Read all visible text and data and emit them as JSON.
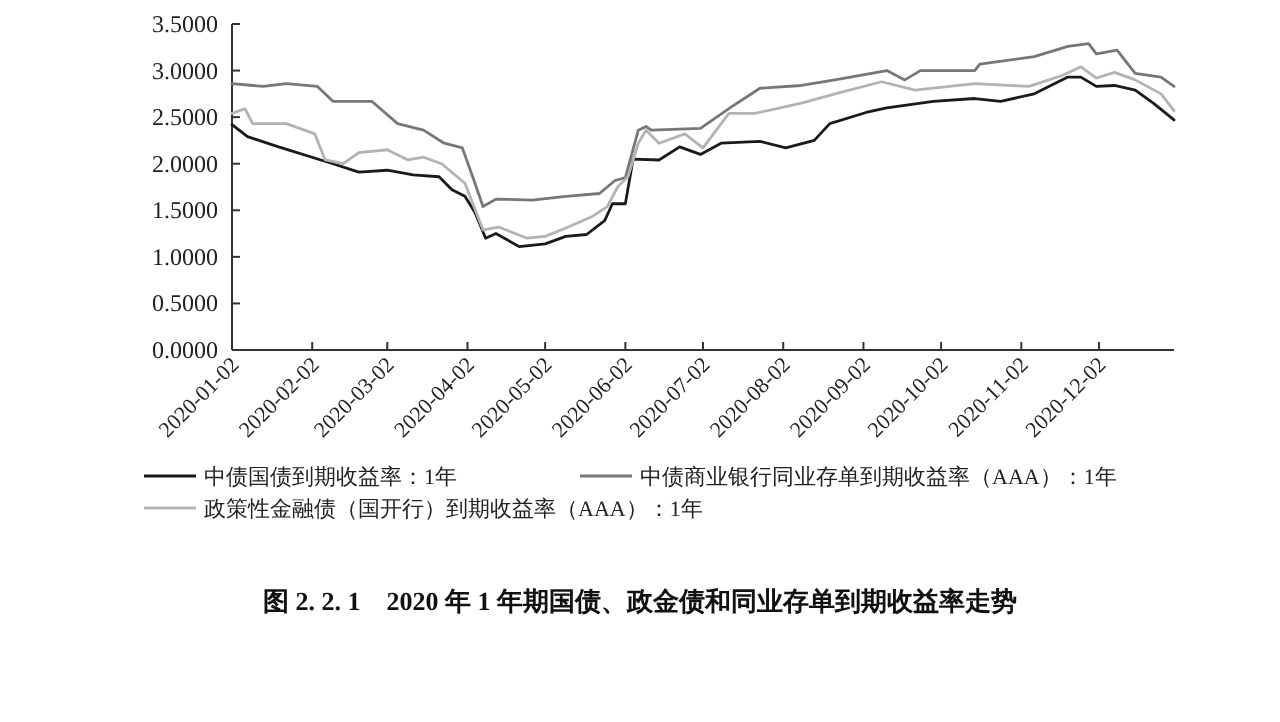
{
  "chart_data": {
    "type": "line",
    "title": "图 2. 2. 1　2020 年 1 年期国债、政金债和同业存单到期收益率走势",
    "xlim": [
      "2020-01-02",
      "2020-12-31"
    ],
    "xticks": [
      "2020-01-02",
      "2020-02-02",
      "2020-03-02",
      "2020-04-02",
      "2020-05-02",
      "2020-06-02",
      "2020-07-02",
      "2020-08-02",
      "2020-09-02",
      "2020-10-02",
      "2020-11-02",
      "2020-12-02"
    ],
    "ylim": [
      0,
      3.5
    ],
    "yticks": [
      {
        "value": 0,
        "label": "0.0000"
      },
      {
        "value": 0.5,
        "label": "0.5000"
      },
      {
        "value": 1,
        "label": "1.0000"
      },
      {
        "value": 1.5,
        "label": "1.5000"
      },
      {
        "value": 2,
        "label": "2.0000"
      },
      {
        "value": 2.5,
        "label": "2.5000"
      },
      {
        "value": 3,
        "label": "3.0000"
      },
      {
        "value": 3.5,
        "label": "3.5000"
      }
    ],
    "grid": false,
    "legend": "bottom",
    "marker": "none",
    "line_style": "solid",
    "series": [
      {
        "name": "中债国债到期收益率：1年",
        "color": "#1a1a1a",
        "x": [
          "2020-01-02",
          "2020-01-08",
          "2020-01-20",
          "2020-02-10",
          "2020-02-20",
          "2020-03-02",
          "2020-03-12",
          "2020-03-22",
          "2020-03-27",
          "2020-04-01",
          "2020-04-05",
          "2020-04-09",
          "2020-04-13",
          "2020-04-22",
          "2020-05-02",
          "2020-05-10",
          "2020-05-18",
          "2020-05-25",
          "2020-05-28",
          "2020-06-02",
          "2020-06-05",
          "2020-06-15",
          "2020-06-23",
          "2020-07-01",
          "2020-07-09",
          "2020-07-24",
          "2020-08-03",
          "2020-08-14",
          "2020-08-20",
          "2020-09-03",
          "2020-09-11",
          "2020-09-29",
          "2020-10-15",
          "2020-10-25",
          "2020-11-07",
          "2020-11-20",
          "2020-11-25",
          "2020-12-01",
          "2020-12-08",
          "2020-12-16",
          "2020-12-23",
          "2020-12-31"
        ],
        "values": [
          2.42,
          2.29,
          2.18,
          2.0,
          1.91,
          1.93,
          1.88,
          1.86,
          1.72,
          1.65,
          1.47,
          1.2,
          1.25,
          1.11,
          1.14,
          1.22,
          1.24,
          1.39,
          1.57,
          1.57,
          2.05,
          2.04,
          2.18,
          2.1,
          2.22,
          2.24,
          2.17,
          2.25,
          2.43,
          2.55,
          2.6,
          2.67,
          2.7,
          2.67,
          2.75,
          2.93,
          2.93,
          2.83,
          2.84,
          2.79,
          2.65,
          2.47
        ]
      },
      {
        "name": "中债商业银行同业存单到期收益率（AAA）：1年",
        "color": "#777777",
        "x": [
          "2020-01-02",
          "2020-01-14",
          "2020-01-23",
          "2020-02-04",
          "2020-02-10",
          "2020-02-25",
          "2020-03-06",
          "2020-03-16",
          "2020-03-24",
          "2020-03-31",
          "2020-04-04",
          "2020-04-08",
          "2020-04-13",
          "2020-04-27",
          "2020-05-10",
          "2020-05-23",
          "2020-05-29",
          "2020-06-02",
          "2020-06-07",
          "2020-06-10",
          "2020-06-12",
          "2020-07-01",
          "2020-07-13",
          "2020-07-24",
          "2020-08-09",
          "2020-08-22",
          "2020-09-11",
          "2020-09-18",
          "2020-09-24",
          "2020-10-15",
          "2020-10-17",
          "2020-11-07",
          "2020-11-20",
          "2020-11-28",
          "2020-12-01",
          "2020-12-09",
          "2020-12-16",
          "2020-12-26",
          "2020-12-31"
        ],
        "values": [
          2.86,
          2.83,
          2.86,
          2.83,
          2.67,
          2.67,
          2.43,
          2.36,
          2.22,
          2.17,
          1.86,
          1.54,
          1.62,
          1.61,
          1.65,
          1.68,
          1.82,
          1.85,
          2.36,
          2.4,
          2.36,
          2.38,
          2.61,
          2.81,
          2.84,
          2.9,
          3.0,
          2.9,
          3.0,
          3.0,
          3.07,
          3.15,
          3.26,
          3.29,
          3.18,
          3.22,
          2.97,
          2.93,
          2.83
        ]
      },
      {
        "name": "政策性金融债（国开行）到期收益率（AAA）：1年",
        "color": "#b3b3b3",
        "x": [
          "2020-01-02",
          "2020-01-07",
          "2020-01-10",
          "2020-01-23",
          "2020-02-03",
          "2020-02-07",
          "2020-02-14",
          "2020-02-20",
          "2020-03-02",
          "2020-03-10",
          "2020-03-16",
          "2020-03-23",
          "2020-04-01",
          "2020-04-08",
          "2020-04-14",
          "2020-04-25",
          "2020-05-02",
          "2020-05-10",
          "2020-05-20",
          "2020-05-26",
          "2020-05-30",
          "2020-06-03",
          "2020-06-07",
          "2020-06-10",
          "2020-06-15",
          "2020-06-25",
          "2020-07-02",
          "2020-07-12",
          "2020-07-22",
          "2020-08-09",
          "2020-08-22",
          "2020-09-09",
          "2020-09-22",
          "2020-10-15",
          "2020-11-05",
          "2020-11-18",
          "2020-11-25",
          "2020-12-01",
          "2020-12-08",
          "2020-12-16",
          "2020-12-26",
          "2020-12-31"
        ],
        "values": [
          2.54,
          2.59,
          2.43,
          2.43,
          2.32,
          2.04,
          2.0,
          2.12,
          2.15,
          2.04,
          2.07,
          2.0,
          1.79,
          1.29,
          1.32,
          1.2,
          1.22,
          1.31,
          1.43,
          1.54,
          1.75,
          1.86,
          2.22,
          2.36,
          2.22,
          2.32,
          2.17,
          2.54,
          2.54,
          2.65,
          2.75,
          2.88,
          2.79,
          2.86,
          2.83,
          2.95,
          3.04,
          2.92,
          2.98,
          2.9,
          2.75,
          2.57
        ]
      }
    ]
  }
}
